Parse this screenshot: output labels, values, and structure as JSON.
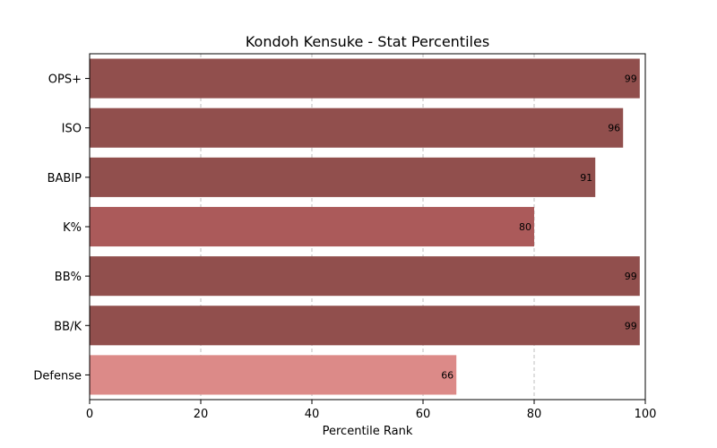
{
  "chart_data": {
    "type": "bar",
    "orientation": "horizontal",
    "title": "Kondoh Kensuke - Stat Percentiles",
    "xlabel": "Percentile Rank",
    "ylabel": "",
    "xlim": [
      0,
      100
    ],
    "xticks": [
      0,
      20,
      40,
      60,
      80,
      100
    ],
    "grid": "x-dashed",
    "categories": [
      "OPS+",
      "ISO",
      "BABIP",
      "K%",
      "BB%",
      "BB/K",
      "Defense"
    ],
    "values": [
      99,
      96,
      91,
      80,
      99,
      99,
      66
    ],
    "labels": [
      "99",
      "96",
      "91",
      "80",
      "99",
      "99",
      "66"
    ],
    "colors": [
      "#914f4d",
      "#914f4d",
      "#914f4d",
      "#ab5a5a",
      "#914f4d",
      "#914f4d",
      "#dc8a88"
    ]
  }
}
